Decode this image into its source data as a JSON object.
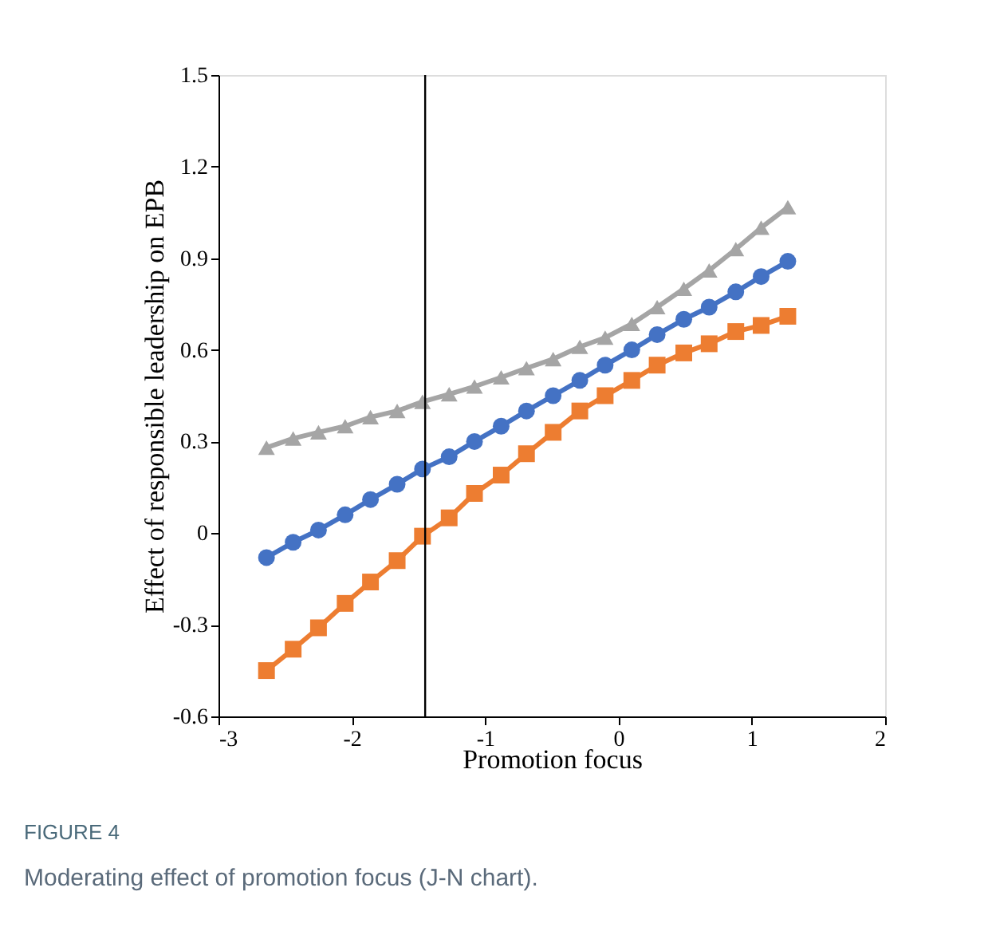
{
  "chart_data": {
    "type": "line",
    "xlabel": "Promotion focus",
    "ylabel": "Effect of responsible leadership on EPB",
    "x": [
      -2.64,
      -2.44,
      -2.25,
      -2.05,
      -1.86,
      -1.66,
      -1.47,
      -1.27,
      -1.08,
      -0.88,
      -0.69,
      -0.49,
      -0.29,
      -0.1,
      0.1,
      0.29,
      0.49,
      0.68,
      0.88,
      1.07,
      1.27
    ],
    "series": [
      {
        "color": "#a5a5a5",
        "marker": "triangle",
        "values": [
          0.28,
          0.31,
          0.33,
          0.35,
          0.38,
          0.4,
          0.43,
          0.455,
          0.48,
          0.51,
          0.54,
          0.57,
          0.61,
          0.64,
          0.685,
          0.74,
          0.8,
          0.86,
          0.93,
          1.0,
          1.067
        ]
      },
      {
        "color": "#4472c4",
        "marker": "circle",
        "values": [
          -0.08,
          -0.03,
          0.01,
          0.06,
          0.11,
          0.16,
          0.21,
          0.25,
          0.3,
          0.35,
          0.4,
          0.45,
          0.5,
          0.55,
          0.6,
          0.65,
          0.7,
          0.74,
          0.79,
          0.84,
          0.89
        ]
      },
      {
        "color": "#ed7d31",
        "marker": "square",
        "values": [
          -0.45,
          -0.38,
          -0.31,
          -0.23,
          -0.16,
          -0.09,
          -0.01,
          0.05,
          0.13,
          0.19,
          0.26,
          0.33,
          0.4,
          0.45,
          0.5,
          0.55,
          0.59,
          0.62,
          0.66,
          0.68,
          0.71
        ]
      }
    ],
    "xlim": [
      -3,
      2
    ],
    "xticks": [
      -3,
      -2,
      -1,
      0,
      1,
      2
    ],
    "ylim": [
      -0.6,
      1.5
    ],
    "yticks": [
      -0.6,
      -0.3,
      0,
      0.3,
      0.6,
      0.9,
      1.2,
      1.5
    ],
    "ref_lines": [
      {
        "axis": "x",
        "value": -1.45,
        "color": "#000000"
      }
    ],
    "grid": false,
    "annotations": [
      "FIGURE 4",
      "Moderating effect of promotion focus (J-N chart)."
    ]
  }
}
